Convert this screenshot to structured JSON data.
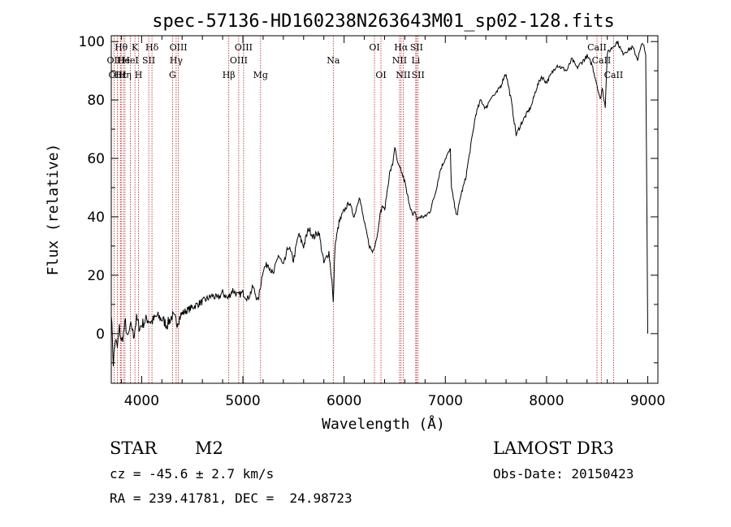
{
  "chart_data": {
    "type": "line",
    "title": "spec-57136-HD160238N263643M01_sp02-128.fits",
    "xlabel": "Wavelength (Å)",
    "ylabel": "Flux (relative)",
    "xlim": [
      3700,
      9100
    ],
    "ylim": [
      -17,
      102
    ],
    "x_ticks": [
      4000,
      5000,
      6000,
      7000,
      8000,
      9000
    ],
    "y_ticks": [
      0,
      20,
      40,
      60,
      80,
      100
    ],
    "series": [
      {
        "name": "flux",
        "x": [
          3700,
          3720,
          3740,
          3760,
          3780,
          3800,
          3820,
          3840,
          3860,
          3880,
          3900,
          3920,
          3950,
          3980,
          4000,
          4050,
          4100,
          4150,
          4200,
          4250,
          4300,
          4350,
          4400,
          4500,
          4600,
          4700,
          4750,
          4800,
          4850,
          4900,
          4950,
          5000,
          5050,
          5100,
          5150,
          5200,
          5250,
          5300,
          5350,
          5400,
          5450,
          5500,
          5550,
          5600,
          5650,
          5700,
          5750,
          5800,
          5850,
          5880,
          5893,
          5910,
          5950,
          6000,
          6050,
          6100,
          6150,
          6200,
          6250,
          6280,
          6300,
          6330,
          6350,
          6380,
          6400,
          6430,
          6450,
          6480,
          6500,
          6530,
          6560,
          6580,
          6600,
          6620,
          6650,
          6680,
          6700,
          6720,
          6750,
          6800,
          6850,
          6900,
          6950,
          7000,
          7050,
          7060,
          7080,
          7100,
          7120,
          7150,
          7200,
          7250,
          7300,
          7350,
          7400,
          7450,
          7500,
          7550,
          7580,
          7600,
          7650,
          7700,
          7750,
          7800,
          7850,
          7900,
          7950,
          8000,
          8050,
          8100,
          8150,
          8200,
          8250,
          8300,
          8350,
          8400,
          8450,
          8500,
          8530,
          8550,
          8580,
          8600,
          8650,
          8700,
          8750,
          8800,
          8850,
          8900,
          8950,
          8980,
          9000
        ],
        "y": [
          8,
          -10,
          -2,
          -5,
          2,
          -3,
          0,
          4,
          -2,
          1,
          3,
          -1,
          5,
          2,
          3,
          5,
          4,
          6,
          5,
          3,
          6,
          4,
          7,
          9,
          11,
          13,
          12,
          14,
          12,
          15,
          13,
          14,
          12,
          16,
          11,
          22,
          24,
          20,
          27,
          23,
          30,
          25,
          34,
          30,
          36,
          33,
          35,
          24,
          28,
          18,
          10,
          30,
          38,
          42,
          45,
          40,
          47,
          38,
          30,
          28,
          30,
          34,
          40,
          44,
          42,
          50,
          55,
          58,
          64,
          58,
          56,
          54,
          52,
          48,
          44,
          40,
          42,
          39,
          40,
          40,
          42,
          48,
          56,
          60,
          63,
          50,
          46,
          42,
          41,
          47,
          53,
          64,
          75,
          80,
          77,
          81,
          82,
          85,
          88,
          89,
          80,
          68,
          72,
          75,
          78,
          84,
          88,
          86,
          89,
          92,
          91,
          90,
          94,
          91,
          93,
          95,
          92,
          85,
          80,
          84,
          78,
          96,
          98,
          100,
          96,
          97,
          98,
          94,
          100,
          95,
          0
        ]
      }
    ],
    "lines": [
      {
        "label": "Hθ",
        "wl": 3798,
        "row": 1
      },
      {
        "label": "OII",
        "wl": 3727,
        "row": 2
      },
      {
        "label": "OIII",
        "wl": 3760,
        "row": 3
      },
      {
        "label": "Hε",
        "wl": 3790,
        "row": 3
      },
      {
        "label": "He",
        "wl": 3820,
        "row": 2
      },
      {
        "label": "Hη",
        "wl": 3835,
        "row": 3
      },
      {
        "label": "K",
        "wl": 3934,
        "row": 1
      },
      {
        "label": "HeI",
        "wl": 3889,
        "row": 2
      },
      {
        "label": "H",
        "wl": 3969,
        "row": 3
      },
      {
        "label": "SII",
        "wl": 4070,
        "row": 2
      },
      {
        "label": "Hδ",
        "wl": 4102,
        "row": 1
      },
      {
        "label": "OIII",
        "wl": 4363,
        "row": 1
      },
      {
        "label": "Hγ",
        "wl": 4341,
        "row": 2
      },
      {
        "label": "G",
        "wl": 4305,
        "row": 3
      },
      {
        "label": "OIII",
        "wl": 5007,
        "row": 1
      },
      {
        "label": "OIII",
        "wl": 4959,
        "row": 2
      },
      {
        "label": "Hβ",
        "wl": 4861,
        "row": 3
      },
      {
        "label": "Mg",
        "wl": 5175,
        "row": 3
      },
      {
        "label": "Na",
        "wl": 5893,
        "row": 2
      },
      {
        "label": "OI",
        "wl": 6300,
        "row": 1
      },
      {
        "label": "OI",
        "wl": 6364,
        "row": 3
      },
      {
        "label": "Hα",
        "wl": 6563,
        "row": 1
      },
      {
        "label": "NII",
        "wl": 6548,
        "row": 2
      },
      {
        "label": "NII",
        "wl": 6584,
        "row": 3
      },
      {
        "label": "SII",
        "wl": 6716,
        "row": 1
      },
      {
        "label": "Li",
        "wl": 6708,
        "row": 2
      },
      {
        "label": "SII",
        "wl": 6731,
        "row": 3
      },
      {
        "label": "CaII",
        "wl": 8498,
        "row": 1
      },
      {
        "label": "CaII",
        "wl": 8542,
        "row": 2
      },
      {
        "label": "CaII",
        "wl": 8662,
        "row": 3
      }
    ]
  },
  "info": {
    "object_class": "STAR",
    "subclass": "M2",
    "survey": "LAMOST DR3",
    "redshift": "cz = -45.6 ± 2.7 km/s",
    "obs_date": "Obs-Date: 20150423",
    "coords": "RA = 239.41781, DEC =  24.98723"
  },
  "colors": {
    "spectrum": "#000000",
    "line_marker": "#b22222",
    "axis": "#000000",
    "background": "#ffffff"
  }
}
